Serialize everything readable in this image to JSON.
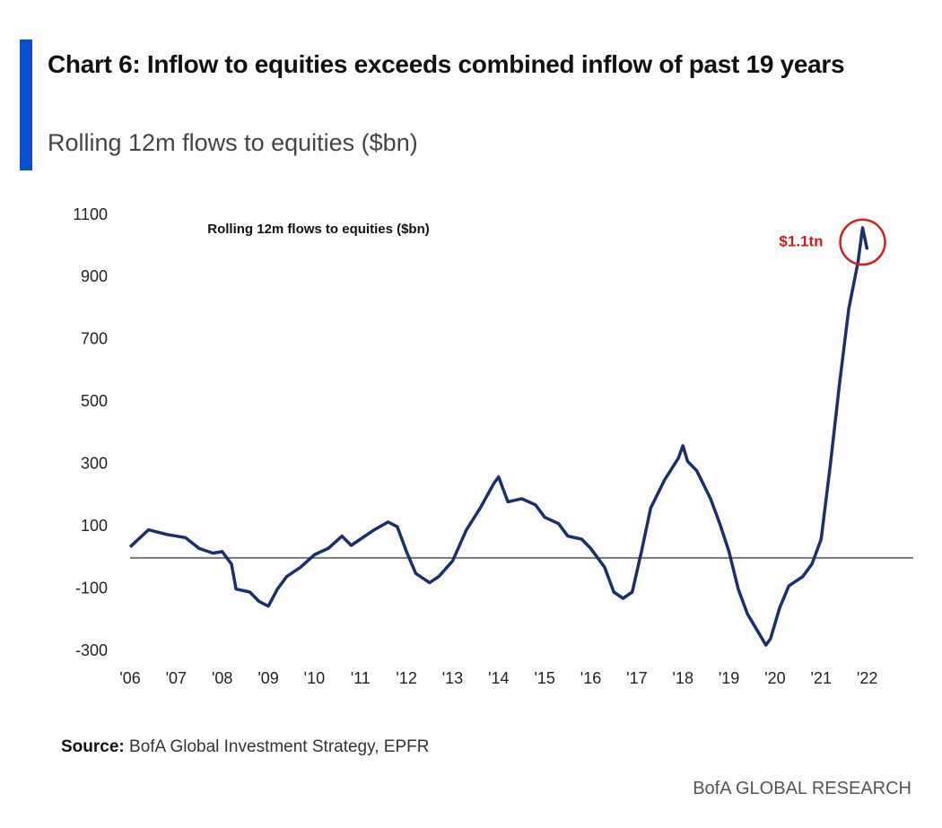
{
  "chart_data": {
    "type": "line",
    "title": "Chart 6: Inflow to equities exceeds combined inflow of past 19 years",
    "subtitle": "Rolling 12m flows to equities ($bn)",
    "plot_title": "Rolling 12m flows to equities ($bn)",
    "annotation": "$1.1tn",
    "source_label": "Source:",
    "source": "BofA Global Investment Strategy, EPFR",
    "footer": "BofA GLOBAL RESEARCH",
    "xlim": [
      2006,
      2023
    ],
    "xticks": [
      {
        "value": 2006,
        "label": "'06"
      },
      {
        "value": 2007,
        "label": "'07"
      },
      {
        "value": 2008,
        "label": "'08"
      },
      {
        "value": 2009,
        "label": "'09"
      },
      {
        "value": 2010,
        "label": "'10"
      },
      {
        "value": 2011,
        "label": "'11"
      },
      {
        "value": 2012,
        "label": "'12"
      },
      {
        "value": 2013,
        "label": "'13"
      },
      {
        "value": 2014,
        "label": "'14"
      },
      {
        "value": 2015,
        "label": "'15"
      },
      {
        "value": 2016,
        "label": "'16"
      },
      {
        "value": 2017,
        "label": "'17"
      },
      {
        "value": 2018,
        "label": "'18"
      },
      {
        "value": 2019,
        "label": "'19"
      },
      {
        "value": 2020,
        "label": "'20"
      },
      {
        "value": 2021,
        "label": "'21"
      },
      {
        "value": 2022,
        "label": "'22"
      }
    ],
    "ylim": [
      -300,
      1100
    ],
    "yticks": [
      -300,
      -100,
      100,
      300,
      500,
      700,
      900,
      1100
    ],
    "reference_line": 0,
    "series": [
      {
        "name": "Rolling 12m flows to equities ($bn)",
        "color": "#1b2f6e",
        "x": [
          2006.0,
          2006.4,
          2006.8,
          2007.2,
          2007.5,
          2007.8,
          2008.0,
          2008.2,
          2008.3,
          2008.6,
          2008.8,
          2009.0,
          2009.2,
          2009.4,
          2009.7,
          2010.0,
          2010.3,
          2010.6,
          2010.8,
          2011.0,
          2011.3,
          2011.6,
          2011.8,
          2012.0,
          2012.2,
          2012.5,
          2012.7,
          2013.0,
          2013.3,
          2013.6,
          2013.9,
          2014.0,
          2014.2,
          2014.5,
          2014.8,
          2015.0,
          2015.3,
          2015.5,
          2015.8,
          2016.0,
          2016.3,
          2016.5,
          2016.7,
          2016.9,
          2017.1,
          2017.3,
          2017.6,
          2017.9,
          2018.0,
          2018.1,
          2018.3,
          2018.6,
          2018.8,
          2019.0,
          2019.2,
          2019.4,
          2019.6,
          2019.8,
          2019.9,
          2020.1,
          2020.3,
          2020.6,
          2020.8,
          2021.0,
          2021.2,
          2021.4,
          2021.6,
          2021.8,
          2021.9,
          2022.0
        ],
        "values": [
          35,
          90,
          75,
          65,
          30,
          15,
          20,
          -20,
          -100,
          -110,
          -140,
          -155,
          -100,
          -60,
          -30,
          10,
          30,
          70,
          40,
          60,
          90,
          115,
          100,
          20,
          -50,
          -80,
          -60,
          -10,
          90,
          160,
          240,
          260,
          180,
          190,
          170,
          130,
          110,
          70,
          60,
          30,
          -30,
          -110,
          -130,
          -110,
          20,
          160,
          250,
          320,
          360,
          310,
          280,
          190,
          110,
          20,
          -100,
          -180,
          -230,
          -280,
          -260,
          -160,
          -90,
          -60,
          -20,
          60,
          300,
          560,
          800,
          950,
          1060,
          990
        ]
      }
    ]
  }
}
